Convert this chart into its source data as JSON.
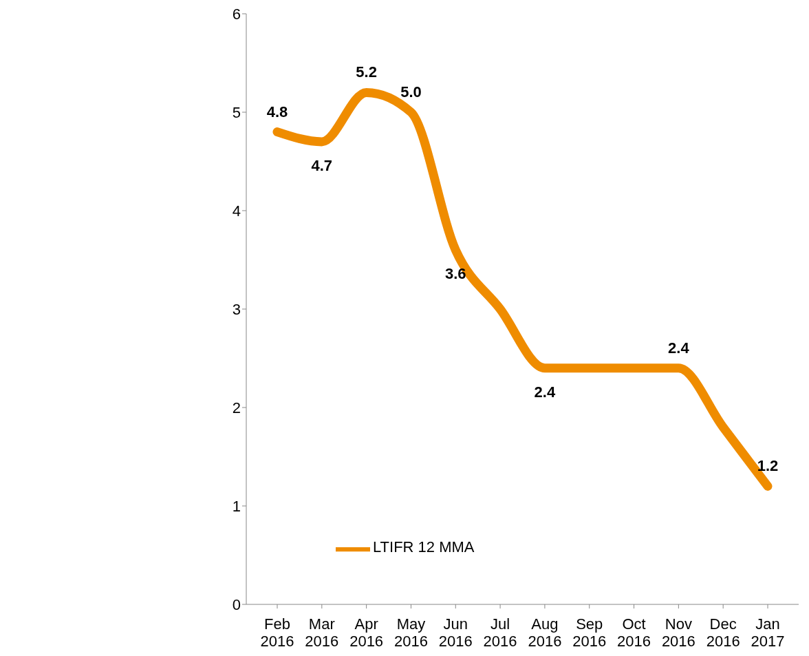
{
  "chart_data": {
    "type": "line",
    "categories": [
      "Feb 2016",
      "Mar 2016",
      "Apr 2016",
      "May 2016",
      "Jun 2016",
      "Jul 2016",
      "Aug 2016",
      "Sep 2016",
      "Oct 2016",
      "Nov 2016",
      "Dec 2016",
      "Jan 2017"
    ],
    "series": [
      {
        "name": "LTIFR 12 MMA",
        "color": "#ef8c00",
        "values": [
          4.8,
          4.7,
          5.2,
          5.0,
          3.6,
          3.0,
          2.4,
          2.4,
          2.4,
          2.4,
          1.8,
          1.2
        ],
        "value_labels": [
          "4.8",
          "4.7",
          "5.2",
          "5.0",
          "3.6",
          null,
          "2.4",
          null,
          null,
          "2.4",
          null,
          "1.2"
        ]
      }
    ],
    "ylim": [
      0,
      6
    ],
    "yticks": [
      0,
      1,
      2,
      3,
      4,
      5,
      6
    ],
    "legend": "bottom",
    "marker": "none",
    "line_style": "solid"
  }
}
